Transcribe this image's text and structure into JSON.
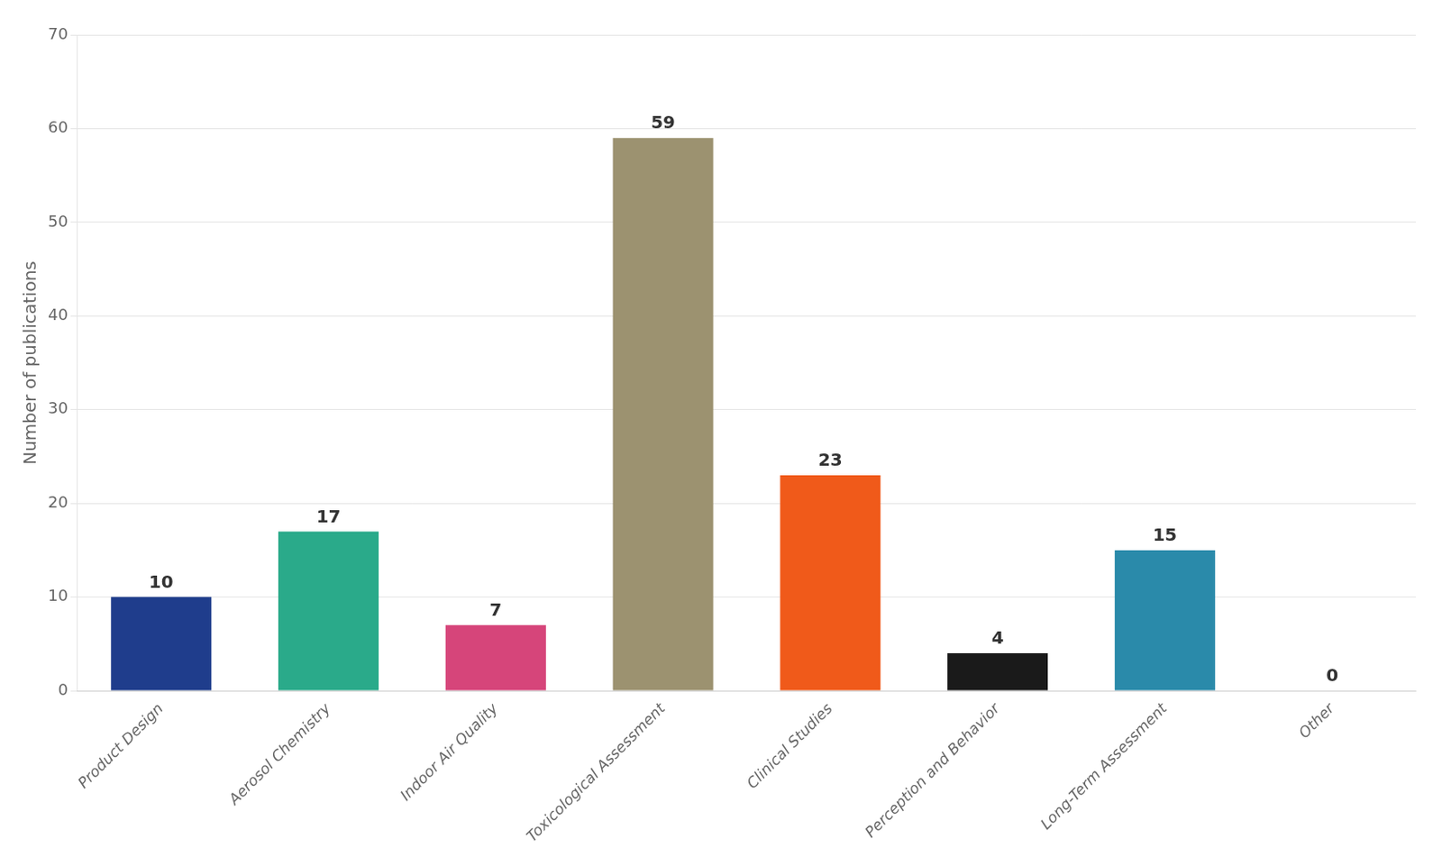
{
  "chart_data": {
    "type": "bar",
    "categories": [
      "Product Design",
      "Aerosol Chemistry",
      "Indoor Air Quality",
      "Toxicological Assessment",
      "Clinical Studies",
      "Perception and Behavior",
      "Long-Term Assessment",
      "Other"
    ],
    "values": [
      10,
      17,
      7,
      59,
      23,
      4,
      15,
      0
    ],
    "colors": [
      "#1f3d8c",
      "#2aaa8a",
      "#d6457a",
      "#9c9270",
      "#f05a1a",
      "#1a1a1a",
      "#2a8aaa",
      "#ffffff"
    ],
    "ylabel": "Number of publications",
    "ylim": [
      0,
      70
    ],
    "yticks": [
      0,
      10,
      20,
      30,
      40,
      50,
      60,
      70
    ],
    "grid": true,
    "data_labels": true
  }
}
